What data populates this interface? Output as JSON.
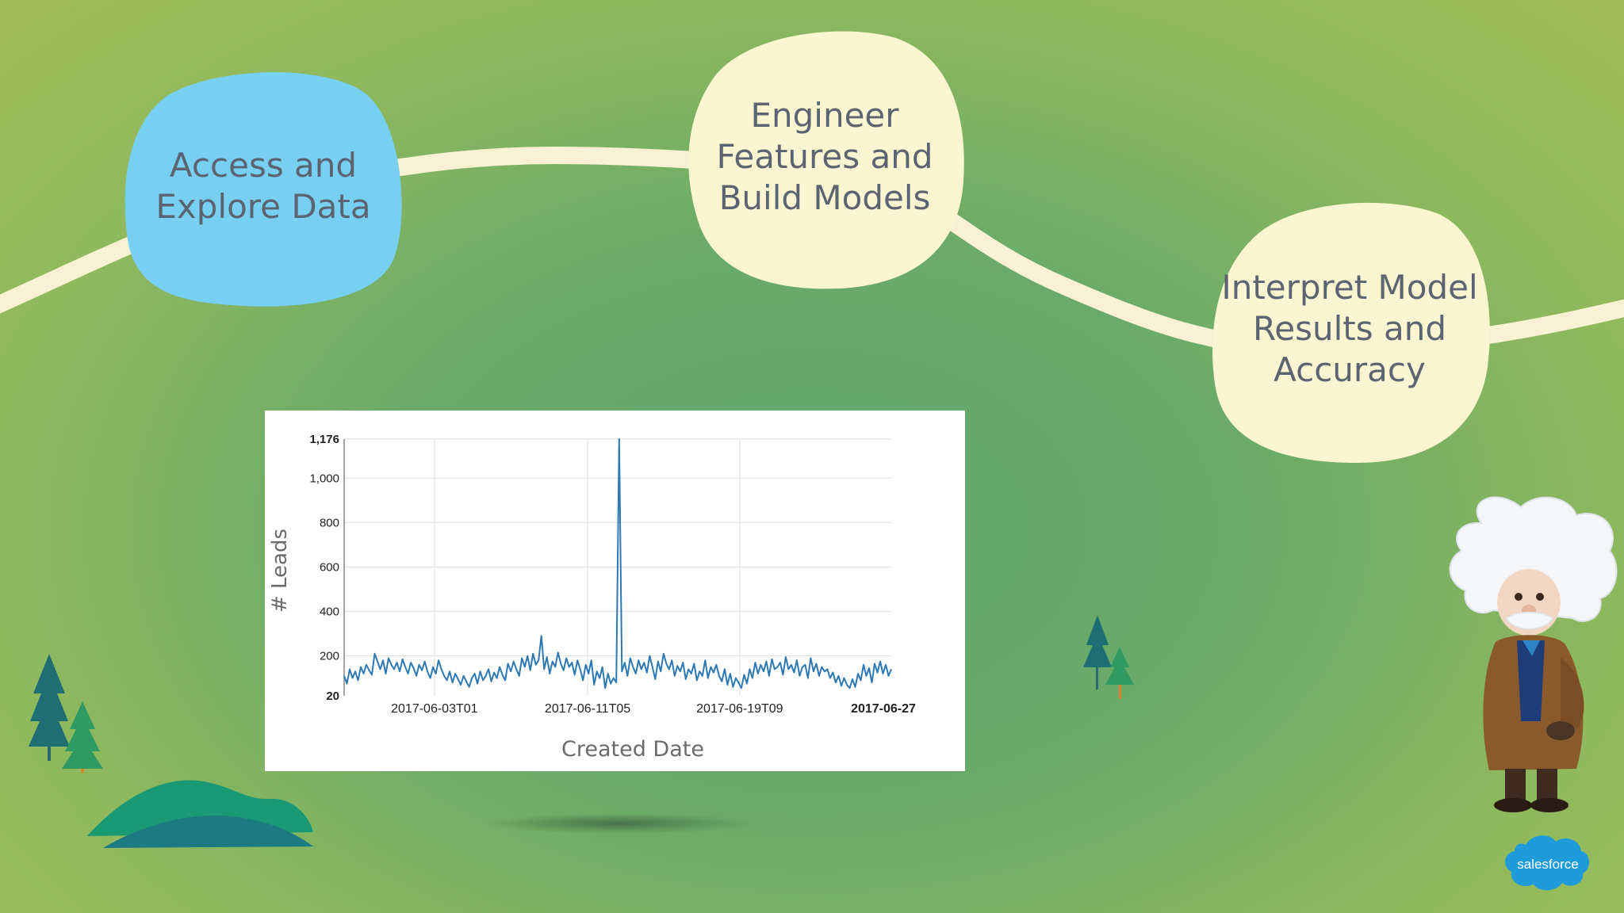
{
  "steps": [
    {
      "label_lines": [
        "Access and",
        "Explore Data"
      ],
      "color": "#77cff2"
    },
    {
      "label_lines": [
        "Engineer",
        "Features and",
        "Build Models"
      ],
      "color": "#fbf5d2"
    },
    {
      "label_lines": [
        "Interpret Model",
        "Results and",
        "Accuracy"
      ],
      "color": "#fbf5d2"
    }
  ],
  "colors": {
    "background": "#6aaa6a",
    "path": "#f8f1d3",
    "chart_line": "#2f79b3",
    "grid": "#e2e2e2"
  },
  "brand": {
    "logo_text": "salesforce",
    "logo_color": "#1e9bd8",
    "mascot": "einstein-mascot"
  },
  "chart_data": {
    "type": "line",
    "xlabel": "Created Date",
    "ylabel": "# Leads",
    "ylim": [
      20,
      1176
    ],
    "xlim": [
      "2017-05-28",
      "2017-06-27"
    ],
    "yticks": [
      {
        "value": 20,
        "label": "20",
        "bold": true
      },
      {
        "value": 200,
        "label": "200",
        "bold": false
      },
      {
        "value": 400,
        "label": "400",
        "bold": false
      },
      {
        "value": 600,
        "label": "600",
        "bold": false
      },
      {
        "value": 800,
        "label": "800",
        "bold": false
      },
      {
        "value": 1000,
        "label": "1,000",
        "bold": false
      },
      {
        "value": 1176,
        "label": "1,176",
        "bold": true
      }
    ],
    "xticks": [
      {
        "label": "2017-06-03T01",
        "gridline": true,
        "bold": false
      },
      {
        "label": "2017-06-11T05",
        "gridline": true,
        "bold": false
      },
      {
        "label": "2017-06-19T09",
        "gridline": true,
        "bold": false
      },
      {
        "label": "2017-06-27",
        "gridline": false,
        "bold": true
      }
    ],
    "series": [
      {
        "values": [
          110,
          75,
          140,
          100,
          130,
          90,
          150,
          120,
          160,
          135,
          115,
          210,
          175,
          140,
          180,
          120,
          190,
          160,
          140,
          170,
          130,
          185,
          150,
          120,
          170,
          145,
          110,
          160,
          135,
          175,
          130,
          100,
          150,
          120,
          180,
          140,
          110,
          90,
          130,
          80,
          120,
          95,
          70,
          110,
          85,
          60,
          100,
          120,
          75,
          130,
          90,
          110,
          140,
          85,
          125,
          100,
          150,
          115,
          90,
          165,
          130,
          175,
          140,
          110,
          190,
          150,
          200,
          135,
          210,
          160,
          180,
          290,
          140,
          195,
          120,
          175,
          150,
          215,
          165,
          135,
          190,
          150,
          170,
          115,
          180,
          140,
          90,
          160,
          120,
          180,
          70,
          130,
          100,
          150,
          55,
          120,
          75,
          100,
          80,
          1176,
          130,
          170,
          110,
          190,
          150,
          120,
          180,
          140,
          170,
          125,
          200,
          150,
          95,
          175,
          130,
          210,
          165,
          140,
          180,
          110,
          155,
          130,
          170,
          95,
          140,
          120,
          165,
          90,
          130,
          110,
          180,
          100,
          150,
          125,
          160,
          110,
          85,
          140,
          70,
          120,
          60,
          100,
          80,
          55,
          115,
          75,
          140,
          100,
          170,
          120,
          160,
          130,
          175,
          110,
          185,
          140,
          150,
          170,
          115,
          195,
          140,
          160,
          125,
          180,
          110,
          150,
          160,
          100,
          190,
          130,
          165,
          110,
          150,
          130,
          140,
          100,
          125,
          80,
          110,
          65,
          100,
          70,
          55,
          95,
          60,
          120,
          90,
          160,
          110,
          145,
          80,
          165,
          125,
          175,
          120,
          160,
          110,
          140
        ]
      }
    ]
  }
}
